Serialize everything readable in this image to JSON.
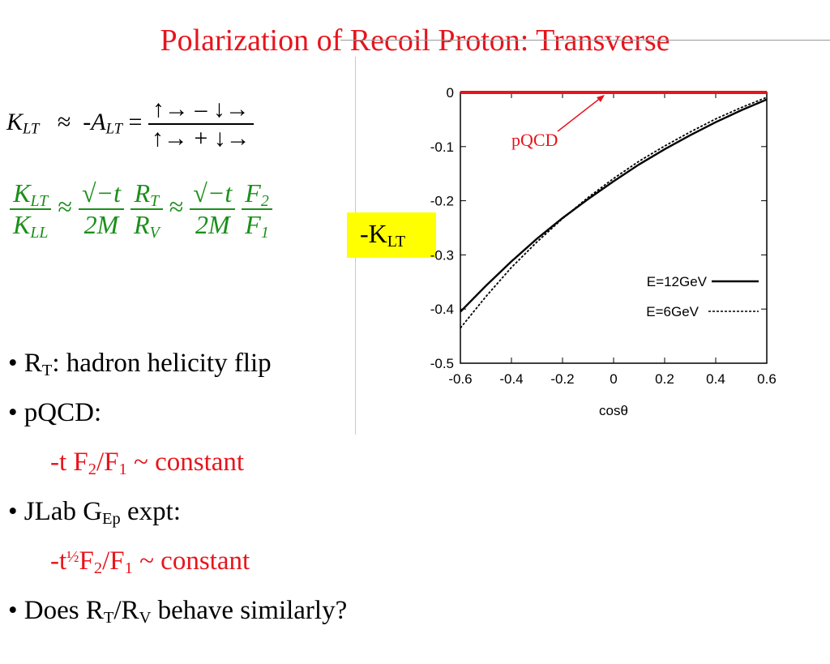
{
  "title": "Polarization of Recoil Proton:  Transverse",
  "eq1": {
    "lhs_sym": "K",
    "lhs_sub": "LT",
    "approx": "≈",
    "mid_sym": "-A",
    "mid_sub": "LT",
    "equals": "=",
    "numerator": "↑→ – ↓→",
    "denominator": "↑→ + ↓→"
  },
  "eq2": {
    "f1_num_sym": "K",
    "f1_num_sub": "LT",
    "f1_den_sym": "K",
    "f1_den_sub": "LL",
    "approx": "≈",
    "f2_num": "√−t",
    "f2_den": "2M",
    "f3_num_sym": "R",
    "f3_num_sub": "T",
    "f3_den_sym": "R",
    "f3_den_sub": "V",
    "approx2": "≈",
    "f4_num": "√−t",
    "f4_den": "2M",
    "f5_num_sym": "F",
    "f5_num_sub": "2",
    "f5_den_sym": "F",
    "f5_den_sub": "1"
  },
  "klt_label": {
    "prefix": "-K",
    "sub": "LT"
  },
  "bullets": {
    "b1_dot": "• R",
    "b1_sub": "T",
    "b1_rest": ":  hadron helicity flip",
    "b2": "• pQCD:",
    "b2_line_a": "-t F",
    "b2_sub_a": "2",
    "b2_line_b": "/F",
    "b2_sub_b": "1",
    "b2_line_c": " ~ constant",
    "b3_a": "• JLab G",
    "b3_sub": "Ep",
    "b3_b": " expt:",
    "b3_line_a": "-t",
    "b3_sup": "½",
    "b3_line_b": "F",
    "b3_sub_a": "2",
    "b3_line_c": "/F",
    "b3_sub_b": "1",
    "b3_line_d": " ~ constant",
    "b4_a": "• Does R",
    "b4_sub1": "T",
    "b4_b": "/R",
    "b4_sub2": "V",
    "b4_c": " behave similarly?"
  },
  "colors": {
    "title": "#e8141c",
    "equation_green": "#1a8f1a",
    "highlight": "#ffff00",
    "pqcd_line": "#e8141c"
  },
  "chart_data": {
    "type": "line",
    "xlabel": "cosθ",
    "ylabel": "",
    "xlim": [
      -0.6,
      0.6
    ],
    "ylim": [
      -0.5,
      0
    ],
    "xticks": [
      "-0.6",
      "-0.4",
      "-0.2",
      "0",
      "0.2",
      "0.4",
      "0.6"
    ],
    "yticks": [
      "0",
      "-0.1",
      "-0.2",
      "-0.3",
      "-0.4",
      "-0.5"
    ],
    "legend_position": "bottom-right",
    "annotation": "pQCD",
    "series": [
      {
        "name": "pQCD",
        "style": "red-solid",
        "x": [
          -0.6,
          0.6
        ],
        "y": [
          0,
          0
        ]
      },
      {
        "name": "E=12GeV",
        "style": "solid",
        "x": [
          -0.6,
          -0.5,
          -0.4,
          -0.3,
          -0.2,
          -0.1,
          0.0,
          0.1,
          0.2,
          0.3,
          0.4,
          0.5,
          0.6
        ],
        "y": [
          -0.405,
          -0.357,
          -0.312,
          -0.27,
          -0.232,
          -0.197,
          -0.164,
          -0.133,
          -0.105,
          -0.079,
          -0.055,
          -0.033,
          -0.013
        ]
      },
      {
        "name": "E=6GeV",
        "style": "dashed",
        "x": [
          -0.6,
          -0.5,
          -0.4,
          -0.3,
          -0.2,
          -0.1,
          0.0,
          0.1,
          0.2,
          0.3,
          0.4,
          0.5,
          0.6
        ],
        "y": [
          -0.435,
          -0.377,
          -0.323,
          -0.276,
          -0.233,
          -0.194,
          -0.159,
          -0.127,
          -0.099,
          -0.073,
          -0.049,
          -0.028,
          -0.009
        ]
      }
    ]
  }
}
